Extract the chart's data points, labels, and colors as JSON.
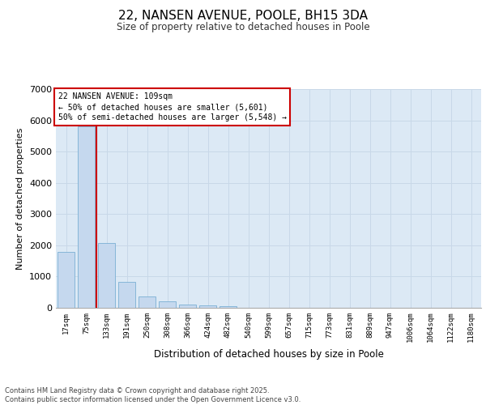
{
  "title": "22, NANSEN AVENUE, POOLE, BH15 3DA",
  "subtitle": "Size of property relative to detached houses in Poole",
  "xlabel": "Distribution of detached houses by size in Poole",
  "ylabel": "Number of detached properties",
  "categories": [
    "17sqm",
    "75sqm",
    "133sqm",
    "191sqm",
    "250sqm",
    "308sqm",
    "366sqm",
    "424sqm",
    "482sqm",
    "540sqm",
    "599sqm",
    "657sqm",
    "715sqm",
    "773sqm",
    "831sqm",
    "889sqm",
    "947sqm",
    "1006sqm",
    "1064sqm",
    "1122sqm",
    "1180sqm"
  ],
  "values": [
    1800,
    5800,
    2080,
    820,
    360,
    220,
    110,
    80,
    50,
    0,
    0,
    0,
    0,
    0,
    0,
    0,
    0,
    0,
    0,
    0,
    0
  ],
  "bar_color": "#c5d8ee",
  "bar_edge_color": "#7aafd4",
  "red_line_color": "#cc0000",
  "annotation_line1": "22 NANSEN AVENUE: 109sqm",
  "annotation_line2": "← 50% of detached houses are smaller (5,601)",
  "annotation_line3": "50% of semi-detached houses are larger (5,548) →",
  "annotation_box_facecolor": "#ffffff",
  "annotation_box_edgecolor": "#cc0000",
  "grid_color": "#c8d8e8",
  "plot_bg_color": "#dce9f5",
  "fig_bg_color": "#ffffff",
  "ylim": [
    0,
    7000
  ],
  "yticks": [
    0,
    1000,
    2000,
    3000,
    4000,
    5000,
    6000,
    7000
  ],
  "red_line_x": 1.5,
  "footer_line1": "Contains HM Land Registry data © Crown copyright and database right 2025.",
  "footer_line2": "Contains public sector information licensed under the Open Government Licence v3.0."
}
